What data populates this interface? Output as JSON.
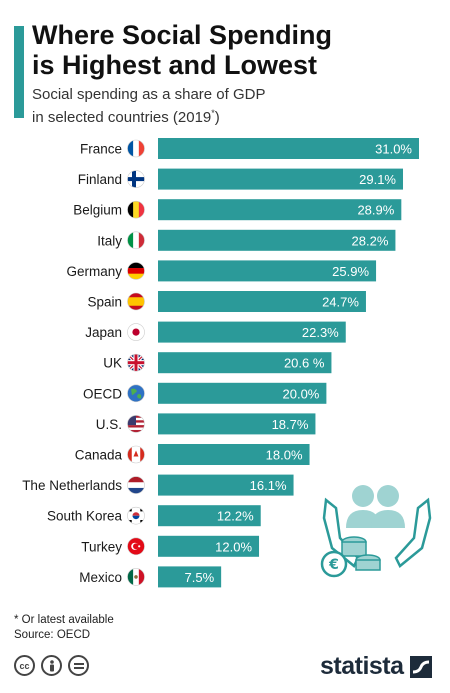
{
  "header": {
    "title_line1": "Where Social Spending",
    "title_line2": "is Highest and Lowest",
    "subtitle_line1": "Social spending as a share of GDP",
    "subtitle_line2": "in selected countries (2019",
    "subtitle_star": "*",
    "subtitle_close": ")"
  },
  "chart_data": {
    "type": "bar",
    "orientation": "horizontal",
    "categories": [
      "France",
      "Finland",
      "Belgium",
      "Italy",
      "Germany",
      "Spain",
      "Japan",
      "UK",
      "OECD",
      "U.S.",
      "Canada",
      "The Netherlands",
      "South Korea",
      "Turkey",
      "Mexico"
    ],
    "values": [
      31.0,
      29.1,
      28.9,
      28.2,
      25.9,
      24.7,
      22.3,
      20.6,
      20.0,
      18.7,
      18.0,
      16.1,
      12.2,
      12.0,
      7.5
    ],
    "value_labels": [
      "31.0%",
      "29.1%",
      "28.9%",
      "28.2%",
      "25.9%",
      "24.7%",
      "22.3%",
      "20.6 %",
      "20.0%",
      "18.7%",
      "18.0%",
      "16.1%",
      "12.2%",
      "12.0%",
      "7.5%"
    ],
    "flags": [
      "france-flag-icon",
      "finland-flag-icon",
      "belgium-flag-icon",
      "italy-flag-icon",
      "germany-flag-icon",
      "spain-flag-icon",
      "japan-flag-icon",
      "uk-flag-icon",
      "globe-icon",
      "us-flag-icon",
      "canada-flag-icon",
      "netherlands-flag-icon",
      "south-korea-flag-icon",
      "turkey-flag-icon",
      "mexico-flag-icon"
    ],
    "xlim": [
      0,
      31.0
    ],
    "bar_color": "#2b9a99",
    "grid": false,
    "legend": "none"
  },
  "footer": {
    "footnote": "* Or latest available",
    "source": "Source: OECD",
    "brand": "statista"
  },
  "colors": {
    "accent": "#2b9a99",
    "brand": "#1d2b3a"
  }
}
